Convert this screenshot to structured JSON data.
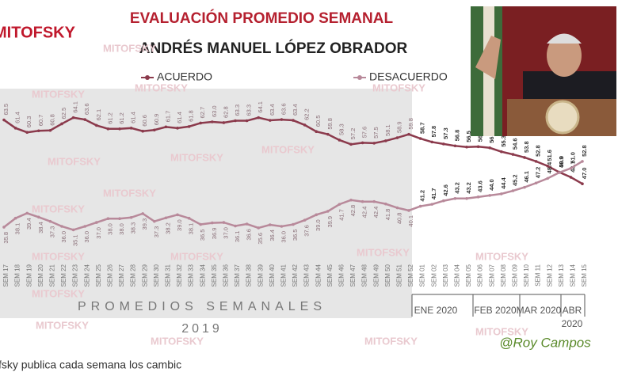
{
  "chart_data": {
    "type": "line",
    "logo": "MITOFSKY",
    "watermark": "MITOFSKY",
    "title": "EVALUACIÓN PROMEDIO SEMANAL",
    "subtitle": "ANDRÉS MANUEL LÓPEZ OBRADOR",
    "period_label": "PROMEDIOS SEMANALES",
    "year_label": "2019",
    "month_labels": [
      "ENE 2020",
      "FEB 2020",
      "MAR 2020",
      "ABR"
    ],
    "last_year_label": "2020",
    "signature": "@Roy Campos",
    "caption": "fsky publica cada semana los cambic",
    "categories": [
      "SEM 17",
      "SEM 18",
      "SEM 19",
      "SEM 20",
      "SEM 21",
      "SEM 22",
      "SEM 23",
      "SEM 24",
      "SEM 25",
      "SEM 26",
      "SEM 27",
      "SEM 28",
      "SEM 29",
      "SEM 30",
      "SEM 31",
      "SEM 32",
      "SEM 33",
      "SEM 34",
      "SEM 35",
      "SEM 36",
      "SEM 37",
      "SEM 38",
      "SEM 39",
      "SEM 40",
      "SEM 41",
      "SEM 42",
      "SEM 43",
      "SEM 44",
      "SEM 45",
      "SEM 46",
      "SEM 47",
      "SEM 48",
      "SEM 49",
      "SEM 50",
      "SEM 51",
      "SEM 52",
      "SEM 01",
      "SEM 02",
      "SEM 03",
      "SEM 04",
      "SEM 05",
      "SEM 06",
      "SEM 07",
      "SEM 08",
      "SEM 09",
      "SEM 10",
      "SEM 11",
      "SEM 12",
      "SEM 13",
      "SEM 14",
      "SEM 15"
    ],
    "ylim": [
      27,
      72
    ],
    "series": [
      {
        "name": "ACUERDO",
        "color": "#8b3a4c",
        "values": [
          63.5,
          61.4,
          60.3,
          60.7,
          60.8,
          62.5,
          64.1,
          63.6,
          62.1,
          61.2,
          61.2,
          61.4,
          60.6,
          60.9,
          61.7,
          61.4,
          61.8,
          62.7,
          63.0,
          62.8,
          63.3,
          63.3,
          64.1,
          63.4,
          63.6,
          63.4,
          62.2,
          60.5,
          59.8,
          58.3,
          57.2,
          57.6,
          57.5,
          58.1,
          58.9,
          59.8,
          58.7,
          57.8,
          57.3,
          56.8,
          56.5,
          56.6,
          56.3,
          55.3,
          54.6,
          53.8,
          52.8,
          51.6,
          50.0,
          48.7,
          47.0
        ],
        "value_labels": [
          "63.5",
          "61.4",
          "60.3",
          "60.7",
          "60.8",
          "62.5",
          "64.1",
          "63.6",
          "62.1",
          "61.2",
          "61.2",
          "61.4",
          "60.6",
          "60.9",
          "61.7",
          "61.4",
          "61.8",
          "62.7",
          "63.0",
          "62.8",
          "63.3",
          "63.3",
          "64.1",
          "63.4",
          "63.6",
          "63.4",
          "62.2",
          "60.5",
          "59.8",
          "58.3",
          "57.2",
          "57.6",
          "57.5",
          "58.1",
          "58.9",
          "59.8",
          "58.7",
          "57.8",
          "57.3",
          "56.8",
          "56.5",
          "56.6",
          "56.3",
          "55.3",
          "54.6",
          "53.8",
          "52.8",
          "51.6",
          "50.0",
          "48.7",
          "47.0"
        ]
      },
      {
        "name": "DESACUERDO",
        "color": "#b8899a",
        "values": [
          35.8,
          38.1,
          39.4,
          38.4,
          37.3,
          36.0,
          35.1,
          36.0,
          37.0,
          38.0,
          38.0,
          38.3,
          39.3,
          37.3,
          38.2,
          39.0,
          38.1,
          36.5,
          36.9,
          37.0,
          36.1,
          36.6,
          35.6,
          36.4,
          36.0,
          36.5,
          37.6,
          39.0,
          39.9,
          41.7,
          42.8,
          42.4,
          42.4,
          41.8,
          40.8,
          40.1,
          41.2,
          41.7,
          42.6,
          43.2,
          43.2,
          43.6,
          44.0,
          44.4,
          45.2,
          46.1,
          47.2,
          48.4,
          49.9,
          51.0,
          52.8
        ],
        "value_labels": [
          "35.8",
          "38.1",
          "39.4",
          "38.4",
          "37.3",
          "36.0",
          "35.1",
          "36.0",
          "37.0",
          "38.0",
          "38.0",
          "38.3",
          "39.3",
          "37.3",
          "38.2",
          "39.0",
          "38.1",
          "36.5",
          "36.9",
          "37.0",
          "36.1",
          "36.6",
          "35.6",
          "36.4",
          "36.0",
          "36.5",
          "37.6",
          "39.0",
          "39.9",
          "41.7",
          "42.8",
          "42.4",
          "42.4",
          "41.8",
          "40.8",
          "40.1",
          "41.2",
          "41.7",
          "42.6",
          "43.2",
          "43.2",
          "43.6",
          "44.0",
          "44.4",
          "45.2",
          "46.1",
          "47.2",
          "48.4",
          "49.9",
          "51.0",
          "52.8"
        ]
      }
    ]
  }
}
